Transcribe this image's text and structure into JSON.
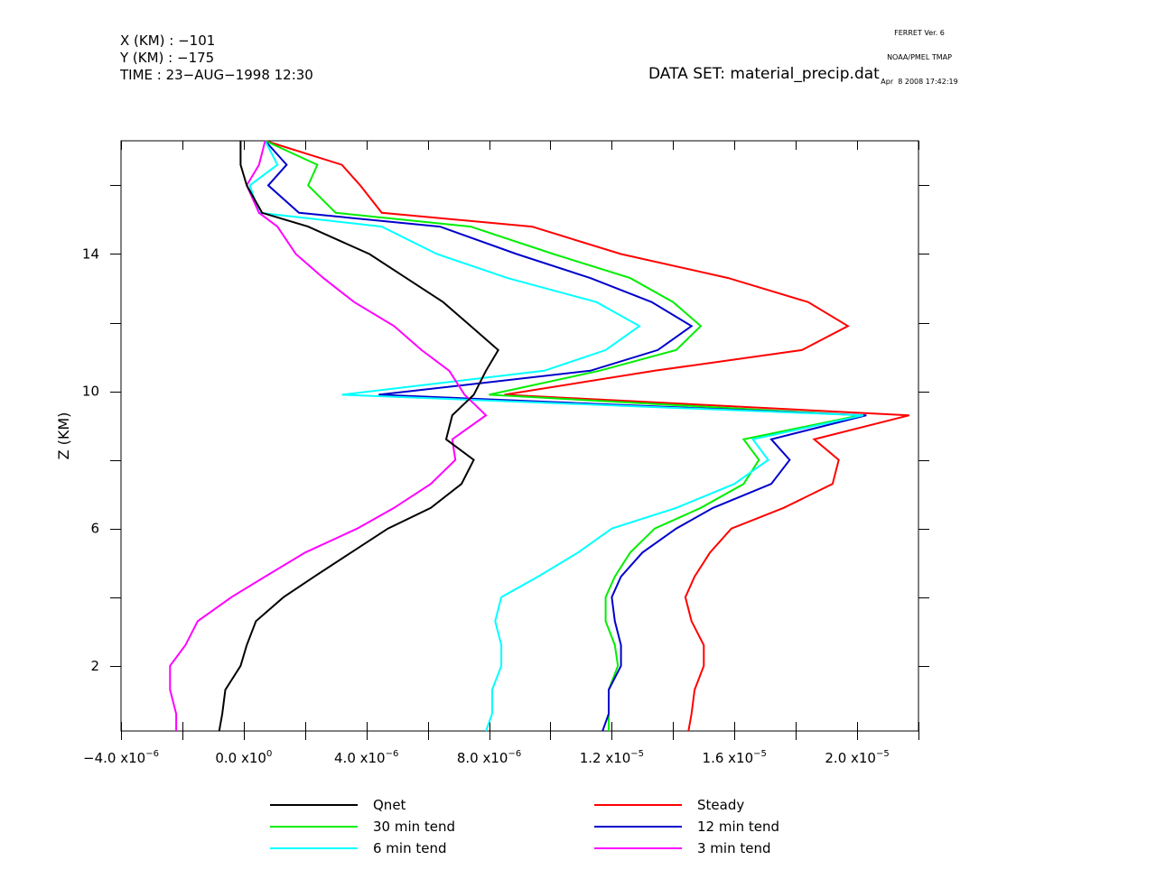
{
  "header": {
    "x_line": "X (KM) : −101",
    "y_line": "Y (KM) : −175",
    "time_line": "TIME : 23−AUG−1998 12:30",
    "dataset": "DATA SET: material_precip.dat",
    "ferret_version": "FERRET Ver. 6",
    "ferret_org": "NOAA/PMEL TMAP",
    "ferret_date": "Apr  8 2008 17:42:19"
  },
  "chart_data": {
    "type": "line",
    "title": "",
    "xlabel": "",
    "ylabel": "Z (KM)",
    "xlim": [
      -4e-06,
      2.2e-05
    ],
    "ylim": [
      0.1,
      17.3
    ],
    "x_ticks": [
      {
        "base": "−4.0 x10",
        "exp": "−6",
        "value": -4e-06
      },
      {
        "base": "0.0 x10",
        "exp": "0",
        "value": 0
      },
      {
        "base": "4.0 x10",
        "exp": "−6",
        "value": 4e-06
      },
      {
        "base": "8.0 x10",
        "exp": "−6",
        "value": 8e-06
      },
      {
        "base": "1.2 x10",
        "exp": "−5",
        "value": 1.2e-05
      },
      {
        "base": "1.6 x10",
        "exp": "−5",
        "value": 1.6e-05
      },
      {
        "base": "2.0 x10",
        "exp": "−5",
        "value": 2e-05
      }
    ],
    "y_ticks": [
      {
        "label": "2",
        "value": 2
      },
      {
        "label": "6",
        "value": 6
      },
      {
        "label": "10",
        "value": 10
      },
      {
        "label": "14",
        "value": 14
      }
    ],
    "z": [
      17.3,
      16.6,
      16.0,
      15.2,
      14.8,
      14.0,
      13.3,
      12.6,
      11.9,
      11.2,
      10.6,
      9.9,
      9.3,
      8.6,
      8.0,
      7.3,
      6.6,
      6.0,
      5.3,
      4.6,
      4.0,
      3.3,
      2.6,
      2.0,
      1.3,
      0.6,
      0.1
    ],
    "series": [
      {
        "name": "Qnet",
        "color": "#000000",
        "values": [
          -1e-07,
          -1e-07,
          1e-07,
          6e-07,
          2.1e-06,
          4.1e-06,
          5.3e-06,
          6.5e-06,
          7.4e-06,
          8.3e-06,
          7.9e-06,
          7.5e-06,
          6.8e-06,
          6.6e-06,
          7.5e-06,
          7.1e-06,
          6.1e-06,
          4.7e-06,
          3.5e-06,
          2.3e-06,
          1.3e-06,
          4e-07,
          1e-07,
          -1e-07,
          -6e-07,
          -7e-07,
          -8e-07
        ]
      },
      {
        "name": "Steady",
        "color": "#ff0000",
        "values": [
          7e-07,
          3.2e-06,
          3.8e-06,
          4.5e-06,
          9.4e-06,
          1.23e-05,
          1.58e-05,
          1.84e-05,
          1.97e-05,
          1.82e-05,
          1.34e-05,
          8.5e-06,
          2.17e-05,
          1.86e-05,
          1.94e-05,
          1.92e-05,
          1.76e-05,
          1.59e-05,
          1.52e-05,
          1.47e-05,
          1.44e-05,
          1.46e-05,
          1.5e-05,
          1.5e-05,
          1.47e-05,
          1.46e-05,
          1.45e-05
        ]
      },
      {
        "name": "30 min tend",
        "color": "#00ee00",
        "values": [
          7e-07,
          2.4e-06,
          2.1e-06,
          3e-06,
          7.4e-06,
          1.01e-05,
          1.26e-05,
          1.4e-05,
          1.49e-05,
          1.41e-05,
          1.16e-05,
          8e-06,
          2.01e-05,
          1.63e-05,
          1.68e-05,
          1.63e-05,
          1.49e-05,
          1.34e-05,
          1.26e-05,
          1.21e-05,
          1.18e-05,
          1.18e-05,
          1.21e-05,
          1.22e-05,
          1.19e-05,
          1.19e-05,
          1.19e-05
        ]
      },
      {
        "name": "12 min tend",
        "color": "#0000cc",
        "values": [
          7e-07,
          1.4e-06,
          8e-07,
          1.8e-06,
          6.4e-06,
          8.9e-06,
          1.13e-05,
          1.33e-05,
          1.46e-05,
          1.35e-05,
          1.13e-05,
          4.4e-06,
          2.03e-05,
          1.72e-05,
          1.78e-05,
          1.72e-05,
          1.53e-05,
          1.41e-05,
          1.3e-05,
          1.23e-05,
          1.2e-05,
          1.21e-05,
          1.23e-05,
          1.23e-05,
          1.19e-05,
          1.19e-05,
          1.17e-05
        ]
      },
      {
        "name": "6 min tend",
        "color": "#00ffff",
        "values": [
          7e-07,
          1.1e-06,
          2e-07,
          5e-07,
          4.5e-06,
          6.3e-06,
          8.6e-06,
          1.15e-05,
          1.29e-05,
          1.18e-05,
          9.8e-06,
          3.2e-06,
          2.02e-05,
          1.66e-05,
          1.71e-05,
          1.6e-05,
          1.41e-05,
          1.2e-05,
          1.09e-05,
          9.6e-06,
          8.4e-06,
          8.2e-06,
          8.4e-06,
          8.4e-06,
          8.1e-06,
          8.1e-06,
          7.9e-06
        ]
      },
      {
        "name": "3 min tend",
        "color": "#ff00ff",
        "values": [
          7e-07,
          5e-07,
          1e-07,
          5e-07,
          1.1e-06,
          1.7e-06,
          2.6e-06,
          3.6e-06,
          4.9e-06,
          5.8e-06,
          6.7e-06,
          7.2e-06,
          7.9e-06,
          6.8e-06,
          6.9e-06,
          6.1e-06,
          4.9e-06,
          3.7e-06,
          2e-06,
          7e-07,
          -4e-07,
          -1.5e-06,
          -1.9e-06,
          -2.4e-06,
          -2.4e-06,
          -2.2e-06,
          -2.2e-06
        ]
      }
    ]
  },
  "legend": {
    "items": [
      {
        "label": "Qnet",
        "color": "#000000"
      },
      {
        "label": "Steady",
        "color": "#ff0000"
      },
      {
        "label": "30 min tend",
        "color": "#00ee00"
      },
      {
        "label": "12 min tend",
        "color": "#0000cc"
      },
      {
        "label": "6 min tend",
        "color": "#00ffff"
      },
      {
        "label": "3 min tend",
        "color": "#ff00ff"
      }
    ]
  }
}
